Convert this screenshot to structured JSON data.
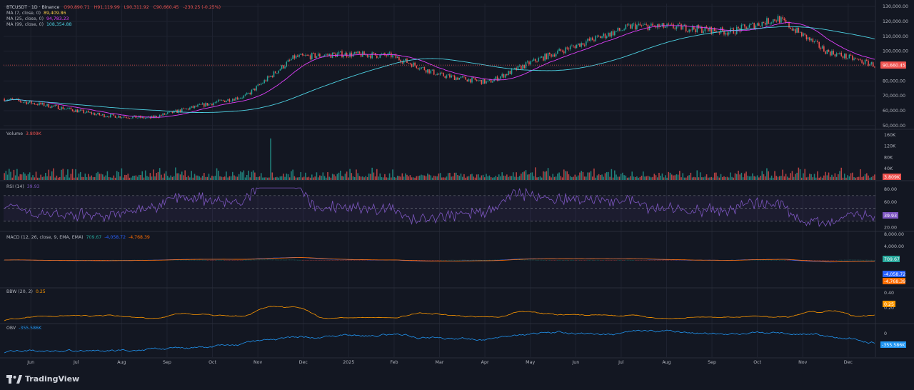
{
  "header": {
    "symbol_line": "BTCUSDT · 1D · Binance",
    "ohlc": {
      "open": "O90,890.71",
      "high": "H91,119.99",
      "low": "L90,311.92",
      "close": "C90,660.45",
      "change": "-230.25 (-0.25%)"
    },
    "ma7": {
      "label": "MA (7, close, 0)",
      "value": "89,409.86"
    },
    "ma25": {
      "label": "MA (25, close, 0)",
      "value": "94,783.23"
    },
    "ma99": {
      "label": "MA (99, close, 0)",
      "value": "108,354.88"
    }
  },
  "price_axis": {
    "ticks": [
      "130,000.00",
      "120,000.00",
      "110,000.00",
      "100,000.00",
      "80,000.00",
      "70,000.00",
      "60,000.00",
      "50,000.00"
    ],
    "last_price": "90,660.45"
  },
  "volume": {
    "label": "Volume",
    "value": "3.809K",
    "ticks": [
      "160K",
      "120K",
      "80K",
      "40K"
    ],
    "badge": "3.809K"
  },
  "rsi": {
    "label": "RSI (14)",
    "value": "39.93",
    "ticks": [
      "80.00",
      "60.00",
      "40.00",
      "20.00"
    ],
    "badge": "39.93"
  },
  "macd": {
    "label": "MACD (12, 26, close, 9, EMA, EMA)",
    "values": [
      "709.67",
      "-4,058.72",
      "-4,768.39"
    ],
    "ticks": [
      "8,000.00",
      "4,000.00"
    ],
    "badges": [
      "709.67",
      "-4,058.72",
      "-4,768.39"
    ]
  },
  "bbw": {
    "label": "BBW (20, 2)",
    "value": "0.25",
    "ticks": [
      "0.40",
      "0.20"
    ],
    "badge": "0.25"
  },
  "obv": {
    "label": "OBV",
    "value": "-355.586K",
    "ticks": [
      "0",
      "-2"
    ],
    "badge": "-355.586K"
  },
  "time_axis": [
    "Jun",
    "Jul",
    "Aug",
    "Sep",
    "Oct",
    "Nov",
    "Dec",
    "2025",
    "Feb",
    "Mar",
    "Apr",
    "May",
    "Jun",
    "Jul",
    "Aug",
    "Sep",
    "Oct",
    "Nov",
    "Dec"
  ],
  "brand": "TradingView",
  "colors": {
    "bg": "#131722",
    "up": "#26a69a",
    "down": "#ef5350",
    "ma7": "#f7c948",
    "ma25": "#e040fb",
    "ma99": "#4dd0e1",
    "rsi": "#7e57c2",
    "macd": "#2962ff",
    "signal": "#ff6d00",
    "bbw": "#ff9800",
    "obv": "#2196f3"
  },
  "chart_data": {
    "type": "candlestick",
    "title": "BTCUSDT · 1D · Binance",
    "ylim": [
      50000,
      130000
    ],
    "x": [
      "Jun",
      "Jul",
      "Aug",
      "Sep",
      "Oct",
      "Nov",
      "Dec",
      "2025",
      "Feb",
      "Mar",
      "Apr",
      "May",
      "Jun",
      "Jul",
      "Aug",
      "Sep",
      "Oct",
      "Nov",
      "Dec"
    ],
    "close_approx": [
      68000,
      63000,
      57000,
      55000,
      63000,
      70000,
      96000,
      98000,
      97000,
      84000,
      79000,
      94000,
      106000,
      117000,
      116000,
      113000,
      122000,
      100000,
      90660
    ],
    "indicators": {
      "rsi_last": 39.93,
      "macd_last": [
        709.67,
        -4058.72,
        -4768.39
      ],
      "bbw_last": 0.25,
      "obv_last": "-355.586K"
    }
  }
}
